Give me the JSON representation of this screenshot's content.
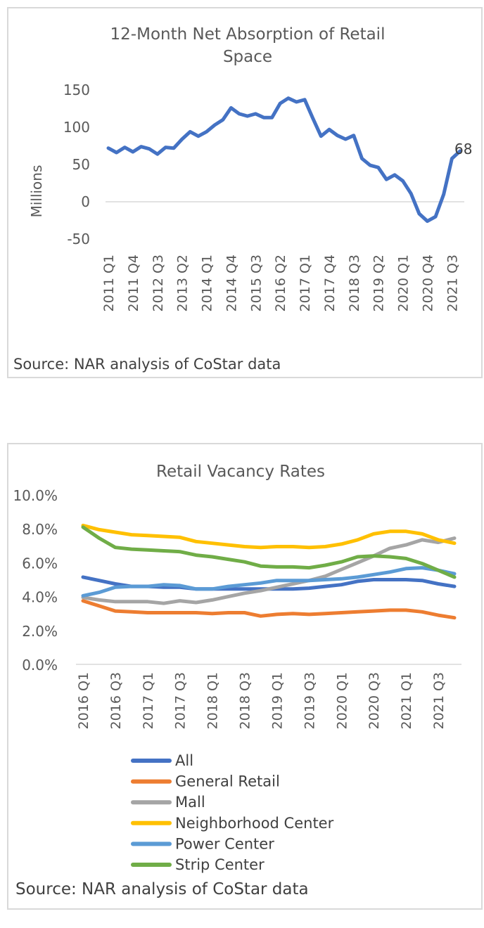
{
  "chart_data": [
    {
      "type": "line",
      "title_line1": "12-Month Net Absorption of Retail",
      "title_line2": "Space",
      "ylabel": "Millions",
      "ylim": [
        -50,
        150
      ],
      "yticks": [
        "150",
        "100",
        "50",
        "0",
        "-50"
      ],
      "ytick_values": [
        150,
        100,
        50,
        0,
        -50
      ],
      "categories": [
        "2011 Q1",
        "2011 Q2",
        "2011 Q3",
        "2011 Q4",
        "2012 Q1",
        "2012 Q2",
        "2012 Q3",
        "2012 Q4",
        "2013 Q1",
        "2013 Q2",
        "2013 Q3",
        "2013 Q4",
        "2014 Q1",
        "2014 Q2",
        "2014 Q3",
        "2014 Q4",
        "2015 Q1",
        "2015 Q2",
        "2015 Q3",
        "2015 Q4",
        "2016 Q1",
        "2016 Q2",
        "2016 Q3",
        "2016 Q4",
        "2017 Q1",
        "2017 Q2",
        "2017 Q3",
        "2017 Q4",
        "2018 Q1",
        "2018 Q2",
        "2018 Q3",
        "2018 Q4",
        "2019 Q1",
        "2019 Q2",
        "2019 Q3",
        "2019 Q4",
        "2020 Q1",
        "2020 Q2",
        "2020 Q3",
        "2020 Q4",
        "2021 Q1",
        "2021 Q2",
        "2021 Q3",
        "2021 Q4"
      ],
      "xtick_labels": [
        "2011 Q1",
        "2011 Q4",
        "2012 Q3",
        "2013 Q2",
        "2014 Q1",
        "2014 Q4",
        "2015 Q3",
        "2016 Q2",
        "2017 Q1",
        "2017 Q4",
        "2018 Q3",
        "2019 Q2",
        "2020 Q1",
        "2020 Q4",
        "2021 Q3"
      ],
      "series": [
        {
          "name": "Net Absorption",
          "color": "#4472C4",
          "values": [
            72,
            66,
            73,
            67,
            74,
            71,
            64,
            73,
            72,
            84,
            94,
            88,
            94,
            103,
            110,
            126,
            118,
            115,
            118,
            113,
            113,
            132,
            139,
            134,
            137,
            112,
            88,
            97,
            89,
            84,
            89,
            58,
            49,
            46,
            30,
            36,
            28,
            11,
            -16,
            -26,
            -20,
            10,
            58,
            68
          ]
        }
      ],
      "data_label": "68",
      "source": "Source: NAR analysis of CoStar data"
    },
    {
      "type": "line",
      "title": "Retail Vacancy Rates",
      "ylim": [
        0,
        10
      ],
      "yticks": [
        "10.0%",
        "8.0%",
        "6.0%",
        "4.0%",
        "2.0%",
        "0.0%"
      ],
      "ytick_values": [
        10,
        8,
        6,
        4,
        2,
        0
      ],
      "categories": [
        "2016 Q1",
        "2016 Q2",
        "2016 Q3",
        "2016 Q4",
        "2017 Q1",
        "2017 Q2",
        "2017 Q3",
        "2017 Q4",
        "2018 Q1",
        "2018 Q2",
        "2018 Q3",
        "2018 Q4",
        "2019 Q1",
        "2019 Q2",
        "2019 Q3",
        "2019 Q4",
        "2020 Q1",
        "2020 Q2",
        "2020 Q3",
        "2020 Q4",
        "2021 Q1",
        "2021 Q2",
        "2021 Q3",
        "2021 Q4"
      ],
      "xtick_labels": [
        "2016 Q1",
        "2016 Q3",
        "2017 Q1",
        "2017 Q3",
        "2018 Q1",
        "2018 Q3",
        "2019 Q1",
        "2019 Q3",
        "2020 Q1",
        "2020 Q3",
        "2021 Q1",
        "2021 Q3"
      ],
      "series": [
        {
          "name": "All",
          "color": "#4472C4",
          "values": [
            5.15,
            4.95,
            4.75,
            4.6,
            4.6,
            4.55,
            4.55,
            4.45,
            4.45,
            4.45,
            4.45,
            4.45,
            4.45,
            4.45,
            4.5,
            4.6,
            4.7,
            4.9,
            5.0,
            5.0,
            5.0,
            4.95,
            4.75,
            4.6
          ]
        },
        {
          "name": "General Retail",
          "color": "#ED7D31",
          "values": [
            3.75,
            3.45,
            3.15,
            3.1,
            3.05,
            3.05,
            3.05,
            3.05,
            3.0,
            3.05,
            3.05,
            2.85,
            2.95,
            3.0,
            2.95,
            3.0,
            3.05,
            3.1,
            3.15,
            3.2,
            3.2,
            3.1,
            2.9,
            2.75
          ]
        },
        {
          "name": "Mall",
          "color": "#A5A5A5",
          "values": [
            3.95,
            3.8,
            3.7,
            3.7,
            3.7,
            3.6,
            3.75,
            3.65,
            3.8,
            4.0,
            4.2,
            4.35,
            4.55,
            4.75,
            4.95,
            5.2,
            5.6,
            6.0,
            6.4,
            6.85,
            7.05,
            7.35,
            7.2,
            7.45
          ]
        },
        {
          "name": "Neighborhood Center",
          "color": "#FFC000",
          "values": [
            8.2,
            7.95,
            7.8,
            7.65,
            7.6,
            7.55,
            7.5,
            7.25,
            7.15,
            7.05,
            6.95,
            6.9,
            6.95,
            6.95,
            6.9,
            6.95,
            7.1,
            7.35,
            7.7,
            7.85,
            7.85,
            7.7,
            7.35,
            7.15
          ]
        },
        {
          "name": "Power Center",
          "color": "#5B9BD5",
          "values": [
            4.05,
            4.25,
            4.55,
            4.6,
            4.6,
            4.7,
            4.65,
            4.45,
            4.45,
            4.6,
            4.7,
            4.8,
            4.95,
            4.95,
            4.95,
            5.0,
            5.05,
            5.15,
            5.3,
            5.45,
            5.65,
            5.7,
            5.55,
            5.35
          ]
        },
        {
          "name": "Strip Center",
          "color": "#70AD47",
          "values": [
            8.1,
            7.45,
            6.9,
            6.8,
            6.75,
            6.7,
            6.65,
            6.45,
            6.35,
            6.2,
            6.05,
            5.8,
            5.75,
            5.75,
            5.7,
            5.85,
            6.05,
            6.35,
            6.4,
            6.35,
            6.25,
            5.95,
            5.55,
            5.15
          ]
        }
      ],
      "source": "Source: NAR analysis of CoStar data"
    }
  ]
}
